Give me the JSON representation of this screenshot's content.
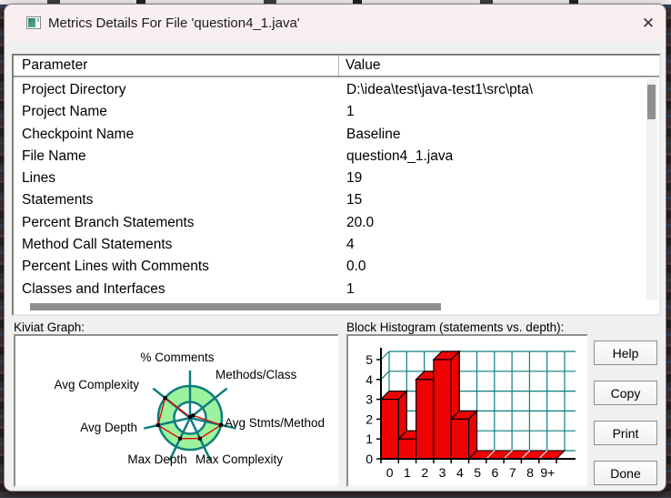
{
  "window": {
    "title": "Metrics Details For File 'question4_1.java'",
    "close_symbol": "✕"
  },
  "table": {
    "columns": [
      "Parameter",
      "Value"
    ],
    "rows": [
      {
        "parameter": "Project Directory",
        "value": "D:\\idea\\test\\java-test1\\src\\pta\\"
      },
      {
        "parameter": "Project Name",
        "value": "1"
      },
      {
        "parameter": "Checkpoint Name",
        "value": "Baseline"
      },
      {
        "parameter": "File Name",
        "value": "question4_1.java"
      },
      {
        "parameter": "Lines",
        "value": "19"
      },
      {
        "parameter": "Statements",
        "value": "15"
      },
      {
        "parameter": "Percent Branch Statements",
        "value": "20.0"
      },
      {
        "parameter": "Method Call Statements",
        "value": "4"
      },
      {
        "parameter": "Percent Lines with Comments",
        "value": "0.0"
      },
      {
        "parameter": "Classes and Interfaces",
        "value": "1"
      }
    ]
  },
  "sections": {
    "kiviat_label": "Kiviat Graph:",
    "histogram_label": "Block Histogram (statements vs. depth):"
  },
  "buttons": [
    "Help",
    "Copy",
    "Print",
    "Done"
  ],
  "chart_data": [
    {
      "type": "radar",
      "title": "Kiviat Graph",
      "axes": [
        "% Comments",
        "Methods/Class",
        "Avg Stmts/Method",
        "Max Complexity",
        "Max Depth",
        "Avg Depth",
        "Avg Complexity"
      ],
      "values_fraction_of_outer_circle": [
        0.03,
        0.12,
        1.0,
        0.72,
        0.72,
        1.03,
        1.0
      ],
      "ring": {
        "fill": "#9df39d",
        "outline": "#0d7e7e",
        "inner_hole_fraction": 0.5
      },
      "series_color": "#e00000",
      "marker_color": "#000000"
    },
    {
      "type": "bar",
      "title": "Block Histogram (statements vs. depth)",
      "categories": [
        "0",
        "1",
        "2",
        "3",
        "4",
        "5",
        "6",
        "7",
        "8",
        "9+"
      ],
      "values": [
        3,
        1,
        4,
        5,
        2,
        0,
        0,
        0,
        0,
        0
      ],
      "xlabel": "depth",
      "ylabel": "statements",
      "ylim": [
        0,
        5
      ],
      "yticks": [
        0,
        1,
        2,
        3,
        4,
        5
      ],
      "bar_color": "#ee0202",
      "grid_color": "#0d7e7e",
      "style": "3d",
      "legend": "none"
    }
  ]
}
